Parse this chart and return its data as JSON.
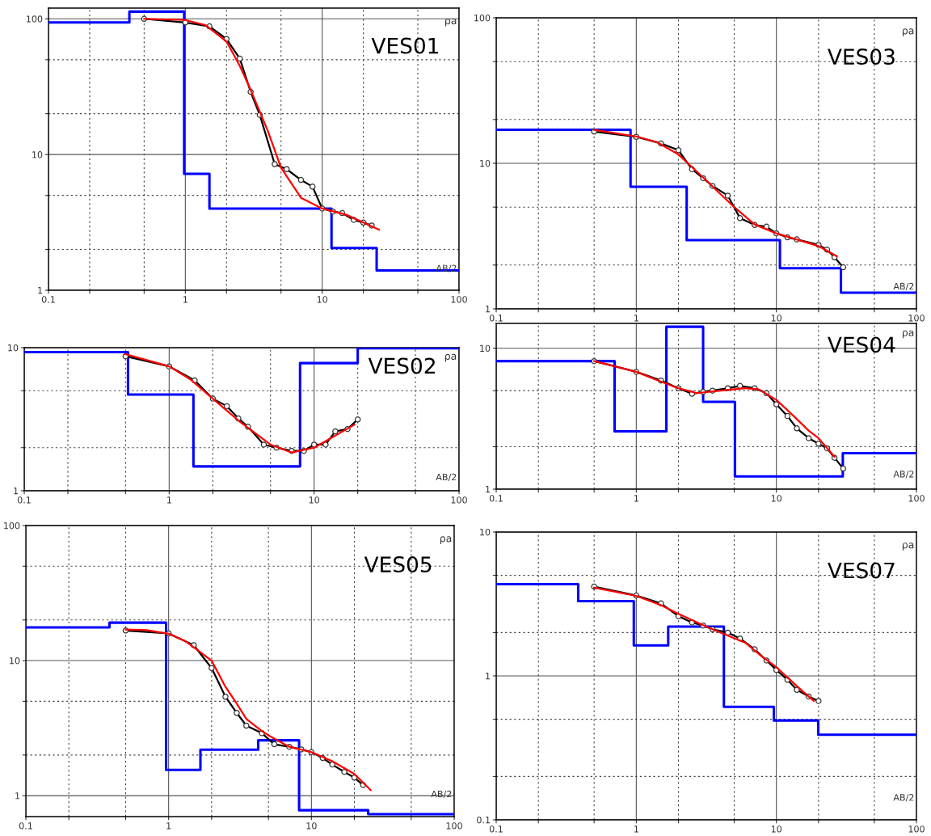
{
  "chart_data": [
    {
      "type": "line",
      "title": "VES01",
      "xlabel": "AB/2",
      "ylabel": "ρa",
      "log": "xy",
      "grid": true,
      "xlim": [
        0.1,
        100
      ],
      "ylim": [
        1,
        120
      ],
      "xticks": [
        0.1,
        {
          "value": 0.2,
          "label": null
        },
        {
          "value": 0.5,
          "label": null
        },
        1,
        {
          "value": 2,
          "label": null
        },
        {
          "value": 5,
          "label": null
        },
        10,
        {
          "value": 20,
          "label": null
        },
        {
          "value": 50,
          "label": null
        },
        100
      ],
      "yticks": [
        1,
        {
          "value": 2,
          "label": null
        },
        {
          "value": 5,
          "label": null
        },
        10,
        {
          "value": 20,
          "label": null
        },
        {
          "value": 50,
          "label": null
        },
        100
      ],
      "series": [
        {
          "type": "step",
          "color": "#0000ff",
          "x": [
            0.1,
            0.39,
            0.98,
            1.5,
            11.7,
            25,
            100
          ],
          "values": [
            94,
            113,
            7.2,
            4.0,
            2.05,
            1.4,
            1.4
          ]
        },
        {
          "color": "#000000",
          "marker": "circle",
          "x": [
            0.5,
            1.0,
            1.5,
            2.0,
            2.5,
            3.0,
            3.5,
            4.5,
            5.5,
            7.0,
            8.5,
            10,
            12,
            14,
            17,
            20,
            23
          ],
          "values": [
            100,
            94,
            88,
            71,
            51,
            29,
            19.6,
            8.5,
            7.8,
            6.5,
            5.8,
            4.0,
            3.8,
            3.7,
            3.3,
            3.15,
            3.0
          ]
        },
        {
          "color": "#ff0000",
          "x": [
            0.5,
            1.0,
            1.4,
            2.0,
            2.5,
            3.0,
            4.0,
            5.0,
            7.0,
            10,
            15,
            26
          ],
          "values": [
            100,
            98,
            90,
            68,
            45,
            30,
            15,
            8,
            4.8,
            4.0,
            3.6,
            2.8
          ]
        }
      ]
    },
    {
      "type": "line",
      "title": "VES03",
      "xlabel": "AB/2",
      "ylabel": "ρa",
      "log": "xy",
      "grid": true,
      "xlim": [
        0.1,
        100
      ],
      "ylim": [
        1,
        100
      ],
      "xticks": [
        0.1,
        {
          "value": 0.2,
          "label": null
        },
        {
          "value": 0.5,
          "label": null
        },
        1,
        {
          "value": 2,
          "label": null
        },
        {
          "value": 5,
          "label": null
        },
        10,
        {
          "value": 20,
          "label": null
        },
        {
          "value": 50,
          "label": null
        },
        100
      ],
      "yticks": [
        1,
        {
          "value": 2,
          "label": null
        },
        {
          "value": 5,
          "label": null
        },
        10,
        {
          "value": 20,
          "label": null
        },
        {
          "value": 50,
          "label": null
        },
        100
      ],
      "series": [
        {
          "type": "step",
          "color": "#0000ff",
          "x": [
            0.1,
            0.91,
            2.29,
            10.6,
            28.9,
            100
          ],
          "values": [
            17,
            6.9,
            2.97,
            1.9,
            1.29,
            1.29
          ]
        },
        {
          "color": "#000000",
          "marker": "circle",
          "x": [
            0.5,
            1.0,
            1.5,
            2.0,
            2.5,
            3.0,
            3.5,
            4.5,
            5.5,
            7.0,
            8.5,
            10,
            12,
            14,
            20,
            23,
            26,
            30
          ],
          "values": [
            16.5,
            15.2,
            13.7,
            12.3,
            9.1,
            7.9,
            7.0,
            6.0,
            4.2,
            3.77,
            3.67,
            3.3,
            3.1,
            3.0,
            2.75,
            2.55,
            2.26,
            1.93
          ]
        },
        {
          "color": "#ff0000",
          "x": [
            0.5,
            1.0,
            1.4,
            2.0,
            3.0,
            5.0,
            7.0,
            10,
            20,
            27
          ],
          "values": [
            17,
            15.3,
            14,
            11.5,
            8,
            5,
            3.8,
            3.3,
            2.7,
            2.3
          ]
        }
      ]
    },
    {
      "type": "line",
      "title": "VES02",
      "xlabel": "AB/2",
      "ylabel": "ρa",
      "log": "xy",
      "grid": true,
      "xlim": [
        0.1,
        100
      ],
      "ylim": [
        1,
        10
      ],
      "xticks": [
        0.1,
        {
          "value": 0.2,
          "label": null
        },
        {
          "value": 0.5,
          "label": null
        },
        1,
        {
          "value": 2,
          "label": null
        },
        {
          "value": 5,
          "label": null
        },
        10,
        {
          "value": 20,
          "label": null
        },
        {
          "value": 50,
          "label": null
        },
        100
      ],
      "yticks": [
        1,
        {
          "value": 2,
          "label": null
        },
        {
          "value": 5,
          "label": null
        },
        10
      ],
      "series": [
        {
          "type": "step",
          "color": "#0000ff",
          "x": [
            0.1,
            0.52,
            1.47,
            8.0,
            20,
            100
          ],
          "values": [
            9.3,
            4.7,
            1.48,
            7.8,
            9.9,
            9.9
          ]
        },
        {
          "color": "#000000",
          "marker": "circle",
          "x": [
            0.5,
            1.0,
            1.5,
            2.0,
            2.5,
            3.0,
            3.5,
            4.5,
            5.5,
            7.0,
            8.5,
            10,
            12,
            14,
            17,
            20
          ],
          "values": [
            8.7,
            7.4,
            5.9,
            4.4,
            3.9,
            3.2,
            2.8,
            2.1,
            2.0,
            1.9,
            1.9,
            2.1,
            2.1,
            2.6,
            2.7,
            3.15
          ]
        },
        {
          "color": "#ff0000",
          "x": [
            0.5,
            1.0,
            1.4,
            2.0,
            3.0,
            5.0,
            7.0,
            10,
            19
          ],
          "values": [
            9.0,
            7.4,
            6.0,
            4.4,
            3.1,
            2.1,
            1.85,
            2.0,
            2.9
          ]
        }
      ]
    },
    {
      "type": "line",
      "title": "VES04",
      "xlabel": "AB/2",
      "ylabel": "ρa",
      "log": "xy",
      "grid": true,
      "xlim": [
        0.1,
        100
      ],
      "ylim": [
        1,
        15
      ],
      "xticks": [
        0.1,
        {
          "value": 0.2,
          "label": null
        },
        {
          "value": 0.5,
          "label": null
        },
        1,
        {
          "value": 2,
          "label": null
        },
        {
          "value": 5,
          "label": null
        },
        10,
        {
          "value": 20,
          "label": null
        },
        {
          "value": 50,
          "label": null
        },
        100
      ],
      "yticks": [
        1,
        {
          "value": 2,
          "label": null
        },
        {
          "value": 5,
          "label": null
        },
        10
      ],
      "series": [
        {
          "type": "step",
          "color": "#0000ff",
          "x": [
            0.1,
            0.7,
            1.64,
            3.0,
            5.06,
            29.8,
            100
          ],
          "values": [
            8.1,
            2.57,
            14.2,
            4.16,
            1.23,
            1.8,
            1.8
          ]
        },
        {
          "color": "#000000",
          "marker": "circle",
          "x": [
            0.5,
            1.0,
            1.5,
            2.0,
            2.5,
            3.0,
            3.5,
            4.5,
            5.5,
            7.0,
            8.5,
            10,
            12,
            14,
            17,
            20,
            23,
            26,
            30
          ],
          "values": [
            8.1,
            6.8,
            5.9,
            5.2,
            4.75,
            4.9,
            5.0,
            5.2,
            5.4,
            5.2,
            4.8,
            4.0,
            3.3,
            2.7,
            2.3,
            2.1,
            1.95,
            1.67,
            1.4
          ]
        },
        {
          "color": "#ff0000",
          "x": [
            0.5,
            1.0,
            1.5,
            2.0,
            2.7,
            4.0,
            6.0,
            7.5,
            10,
            13.3,
            17,
            20,
            26
          ],
          "values": [
            8.1,
            6.8,
            5.8,
            5.2,
            4.8,
            5.0,
            5.2,
            5.1,
            4.3,
            3.3,
            2.6,
            2.3,
            1.7
          ]
        }
      ]
    },
    {
      "type": "line",
      "title": "VES05",
      "xlabel": "AB/2",
      "ylabel": "ρa",
      "log": "xy",
      "grid": true,
      "xlim": [
        0.1,
        100
      ],
      "ylim": [
        0.7,
        100
      ],
      "xticks": [
        0.1,
        {
          "value": 0.2,
          "label": null
        },
        {
          "value": 0.5,
          "label": null
        },
        1,
        {
          "value": 2,
          "label": null
        },
        {
          "value": 5,
          "label": null
        },
        10,
        {
          "value": 20,
          "label": null
        },
        {
          "value": 50,
          "label": null
        },
        100
      ],
      "yticks": [
        1,
        {
          "value": 2,
          "label": null
        },
        {
          "value": 5,
          "label": null
        },
        10,
        {
          "value": 20,
          "label": null
        },
        {
          "value": 50,
          "label": null
        },
        100
      ],
      "series": [
        {
          "type": "step",
          "color": "#0000ff",
          "x": [
            0.1,
            0.385,
            0.96,
            1.67,
            4.24,
            8.2,
            25,
            100
          ],
          "values": [
            17.6,
            19.1,
            1.55,
            2.19,
            2.57,
            0.78,
            0.73,
            0.73
          ]
        },
        {
          "color": "#000000",
          "marker": "circle",
          "x": [
            0.5,
            1.0,
            1.5,
            2.0,
            2.5,
            3.0,
            3.5,
            4.5,
            5.5,
            7.0,
            8.5,
            10,
            12,
            14,
            17,
            20,
            23
          ],
          "values": [
            16.7,
            15.9,
            13.0,
            8.8,
            5.4,
            4.1,
            3.3,
            2.9,
            2.4,
            2.3,
            2.2,
            2.1,
            1.9,
            1.7,
            1.5,
            1.36,
            1.2
          ]
        },
        {
          "color": "#ff0000",
          "x": [
            0.5,
            0.7,
            1.0,
            1.3,
            2.0,
            2.5,
            3.0,
            3.5,
            4.5,
            5.0,
            7.0,
            10,
            14,
            20,
            26
          ],
          "values": [
            17,
            16.8,
            15.8,
            14,
            10,
            6.4,
            4.8,
            3.7,
            3.0,
            2.8,
            2.3,
            2.1,
            1.8,
            1.45,
            1.1
          ]
        }
      ]
    },
    {
      "type": "line",
      "title": "VES07",
      "xlabel": "AB/2",
      "ylabel": "ρa",
      "log": "xy",
      "grid": true,
      "xlim": [
        0.1,
        100
      ],
      "ylim": [
        0.1,
        10
      ],
      "xticks": [
        0.1,
        {
          "value": 0.2,
          "label": null
        },
        {
          "value": 0.5,
          "label": null
        },
        1,
        {
          "value": 2,
          "label": null
        },
        {
          "value": 5,
          "label": null
        },
        10,
        {
          "value": 20,
          "label": null
        },
        {
          "value": 50,
          "label": null
        },
        100
      ],
      "yticks": [
        0.1,
        {
          "value": 0.2,
          "label": null
        },
        {
          "value": 0.5,
          "label": null
        },
        1,
        {
          "value": 2,
          "label": null
        },
        {
          "value": 5,
          "label": null
        },
        10
      ],
      "series": [
        {
          "type": "step",
          "color": "#0000ff",
          "x": [
            0.1,
            0.385,
            0.96,
            1.69,
            4.22,
            9.6,
            19.9,
            100
          ],
          "values": [
            4.34,
            3.31,
            1.63,
            2.2,
            0.61,
            0.49,
            0.39,
            0.39
          ]
        },
        {
          "color": "#000000",
          "marker": "circle",
          "x": [
            0.5,
            1.0,
            1.5,
            2.0,
            2.5,
            3.0,
            3.5,
            4.5,
            5.5,
            7.0,
            8.5,
            10,
            12,
            14,
            17,
            20
          ],
          "values": [
            4.17,
            3.62,
            3.19,
            2.6,
            2.35,
            2.24,
            2.11,
            2.0,
            1.82,
            1.53,
            1.28,
            1.1,
            0.94,
            0.8,
            0.72,
            0.67
          ]
        },
        {
          "color": "#ff0000",
          "x": [
            0.5,
            1.0,
            1.5,
            2.0,
            3.0,
            4.0,
            6.0,
            8.0,
            10,
            14,
            18.5
          ],
          "values": [
            4.1,
            3.6,
            3.1,
            2.7,
            2.25,
            2.0,
            1.7,
            1.35,
            1.15,
            0.85,
            0.67
          ]
        }
      ]
    }
  ]
}
